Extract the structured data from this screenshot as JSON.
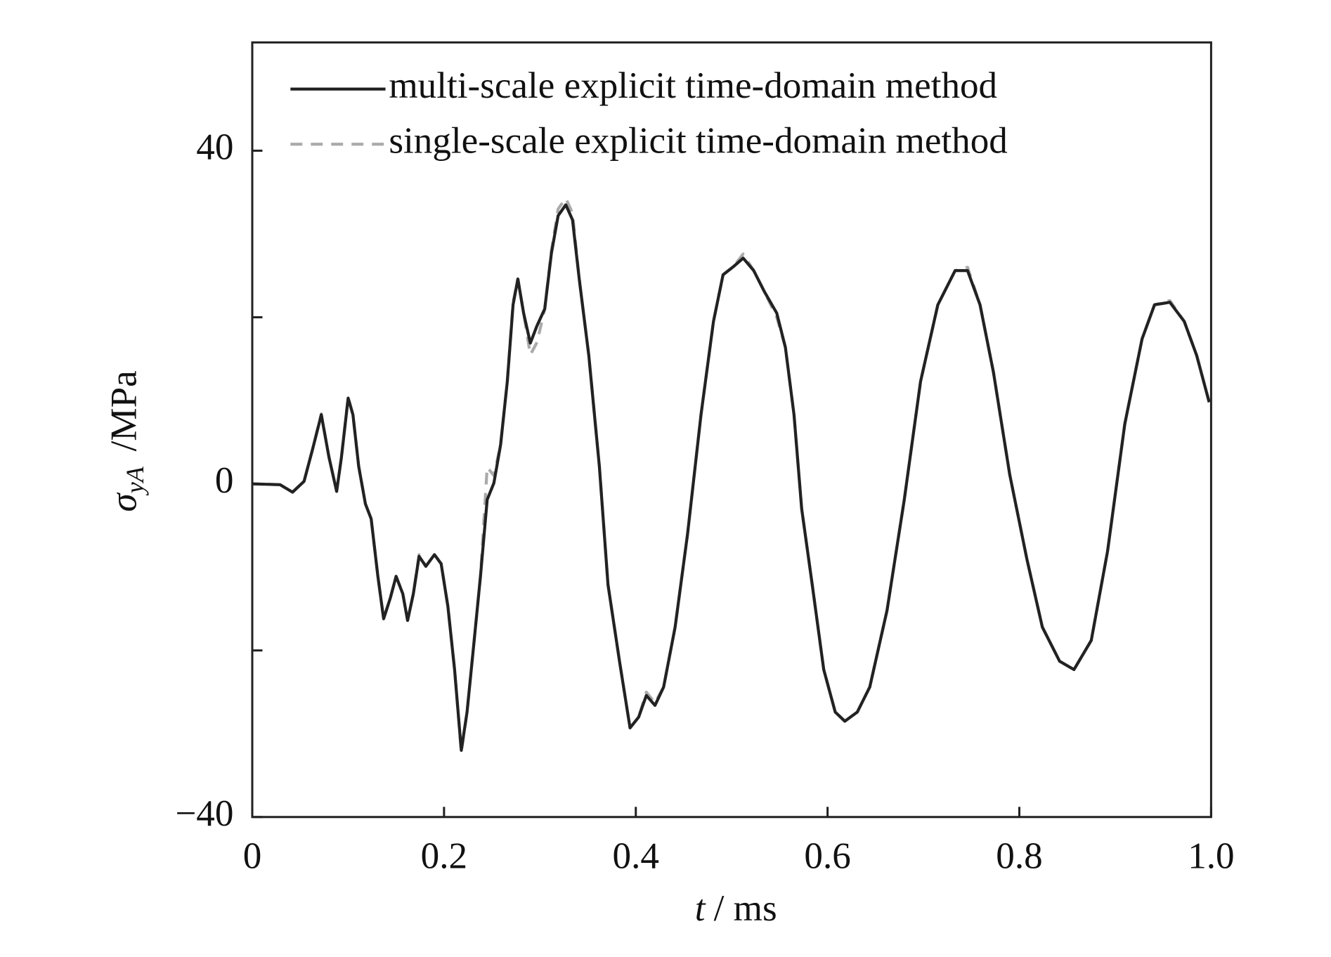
{
  "chart_data": {
    "type": "line",
    "x_label_var": "t",
    "x_label_unit": "/ ms",
    "y_label_var": "σ",
    "y_label_sub": "yA",
    "y_label_unit": "/MPa",
    "x": [
      0,
      0.029,
      0.042,
      0.054,
      0.063,
      0.072,
      0.08,
      0.088,
      0.093,
      0.1,
      0.105,
      0.111,
      0.118,
      0.124,
      0.131,
      0.137,
      0.144,
      0.15,
      0.157,
      0.162,
      0.168,
      0.174,
      0.181,
      0.19,
      0.197,
      0.204,
      0.211,
      0.218,
      0.224,
      0.231,
      0.238,
      0.245,
      0.252,
      0.259,
      0.266,
      0.272,
      0.277,
      0.283,
      0.29,
      0.297,
      0.305,
      0.312,
      0.319,
      0.327,
      0.334,
      0.341,
      0.351,
      0.362,
      0.371,
      0.383,
      0.394,
      0.403,
      0.411,
      0.42,
      0.429,
      0.441,
      0.454,
      0.468,
      0.481,
      0.491,
      0.502,
      0.512,
      0.523,
      0.534,
      0.547,
      0.556,
      0.565,
      0.573,
      0.584,
      0.596,
      0.608,
      0.618,
      0.631,
      0.644,
      0.662,
      0.68,
      0.697,
      0.715,
      0.733,
      0.746,
      0.759,
      0.773,
      0.79,
      0.808,
      0.824,
      0.842,
      0.857,
      0.875,
      0.892,
      0.91,
      0.928,
      0.941,
      0.957,
      0.972,
      0.985,
      0.998
    ],
    "series": [
      {
        "name": "multi-scale explicit time-domain method",
        "color": "#222222",
        "linestyle": "solid",
        "values": [
          0,
          -0.1,
          -1.0,
          0.3,
          4.2,
          8.3,
          3.2,
          -0.9,
          3.2,
          10.3,
          8.3,
          2.1,
          -2.4,
          -4.2,
          -11.1,
          -16.2,
          -13.7,
          -11.1,
          -13.2,
          -16.4,
          -13.2,
          -8.7,
          -9.9,
          -8.5,
          -9.6,
          -14.7,
          -22.3,
          -32.0,
          -27.4,
          -19.3,
          -11.1,
          -1.9,
          0.1,
          4.7,
          12.3,
          21.5,
          24.6,
          20.5,
          16.9,
          19.0,
          21.0,
          27.7,
          32.2,
          33.5,
          31.7,
          24.6,
          15.4,
          2.1,
          -12.1,
          -21.3,
          -29.3,
          -28.0,
          -25.4,
          -26.6,
          -24.4,
          -17.2,
          -6.0,
          8.3,
          19.5,
          25.1,
          26.1,
          27.1,
          25.6,
          23.1,
          20.5,
          16.4,
          8.3,
          -3.0,
          -12.1,
          -22.3,
          -27.4,
          -28.5,
          -27.4,
          -24.4,
          -15.2,
          -1.9,
          12.3,
          21.5,
          25.6,
          25.6,
          21.5,
          13.4,
          1.1,
          -9.1,
          -17.2,
          -21.3,
          -22.3,
          -18.8,
          -8.1,
          7.2,
          17.4,
          21.5,
          21.8,
          19.5,
          15.4,
          9.8
        ]
      },
      {
        "name": "single-scale explicit time-domain method",
        "color": "#aaaaaa",
        "linestyle": "dashed",
        "values": [
          0,
          -0.1,
          -1.0,
          0.3,
          4.2,
          8.4,
          3.2,
          -0.9,
          3.2,
          10.4,
          8.3,
          2.1,
          -2.4,
          -4.2,
          -11.1,
          -16.2,
          -13.7,
          -11.1,
          -13.2,
          -16.4,
          -13.2,
          -8.5,
          -9.9,
          -8.5,
          -9.6,
          -14.7,
          -22.3,
          -32.2,
          -27.4,
          -19.3,
          -11.1,
          2.0,
          1.0,
          4.7,
          12.3,
          21.8,
          24.6,
          20.5,
          15.5,
          17.0,
          21.0,
          28.0,
          33.0,
          34.3,
          32.5,
          24.6,
          15.4,
          2.1,
          -12.1,
          -21.3,
          -29.3,
          -28.0,
          -25.0,
          -26.3,
          -24.4,
          -17.2,
          -6.0,
          8.3,
          19.5,
          25.1,
          26.1,
          27.6,
          25.6,
          23.1,
          20.0,
          16.4,
          8.3,
          -3.0,
          -12.1,
          -22.3,
          -27.4,
          -28.5,
          -27.4,
          -24.4,
          -15.2,
          -1.9,
          12.3,
          21.5,
          25.6,
          26.0,
          21.5,
          13.4,
          1.1,
          -9.1,
          -17.2,
          -21.3,
          -22.3,
          -18.8,
          -8.1,
          7.2,
          17.4,
          21.5,
          22.0,
          19.5,
          15.4,
          9.8
        ]
      }
    ],
    "xlim": [
      0,
      1
    ],
    "xticks": [
      0,
      0.2,
      0.4,
      0.6,
      0.8,
      {
        "value": 1,
        "label": "1.0"
      }
    ],
    "ylim": [
      -40,
      53
    ],
    "yticks": [
      {
        "value": -40,
        "label": "−40"
      },
      0,
      40
    ],
    "yminor_ticks": [
      -20,
      20
    ],
    "legend": "upper left",
    "grid": false
  }
}
